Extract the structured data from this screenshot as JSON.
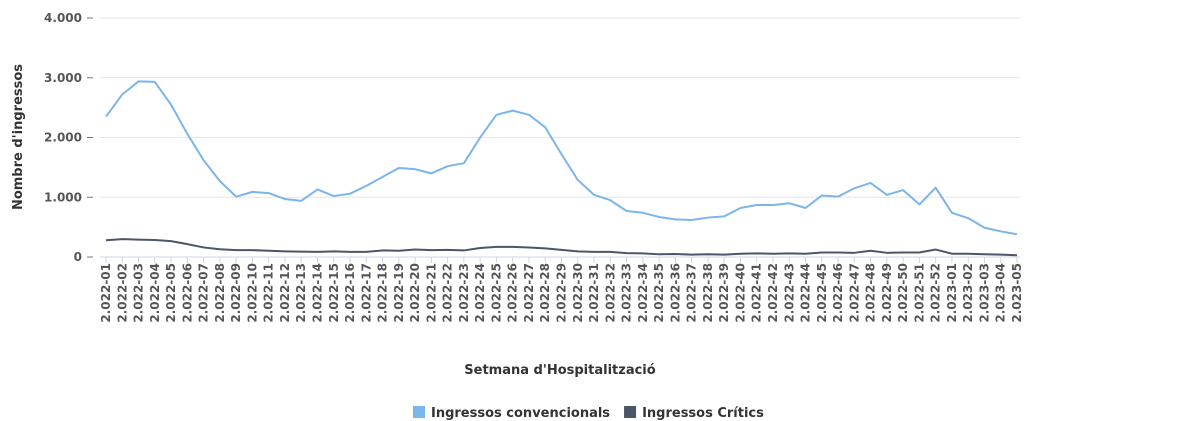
{
  "chart_data": {
    "type": "line",
    "xlabel": "Setmana d'Hospitalització",
    "ylabel": "Nombre d'ingressos",
    "categories": [
      "2.022-01",
      "2.022-02",
      "2.022-03",
      "2.022-04",
      "2.022-05",
      "2.022-06",
      "2.022-07",
      "2.022-08",
      "2.022-09",
      "2.022-10",
      "2.022-11",
      "2.022-12",
      "2.022-13",
      "2.022-14",
      "2.022-15",
      "2.022-16",
      "2.022-17",
      "2.022-18",
      "2.022-19",
      "2.022-20",
      "2.022-21",
      "2.022-22",
      "2.022-23",
      "2.022-24",
      "2.022-25",
      "2.022-26",
      "2.022-27",
      "2.022-28",
      "2.022-29",
      "2.022-30",
      "2.022-31",
      "2.022-32",
      "2.022-33",
      "2.022-34",
      "2.022-35",
      "2.022-36",
      "2.022-37",
      "2.022-38",
      "2.022-39",
      "2.022-40",
      "2.022-41",
      "2.022-42",
      "2.022-43",
      "2.022-44",
      "2.022-45",
      "2.022-46",
      "2.022-47",
      "2.022-48",
      "2.022-49",
      "2.022-50",
      "2.022-51",
      "2.022-52",
      "2.023-01",
      "2.023-02",
      "2.023-03",
      "2.023-04",
      "2.023-05"
    ],
    "series": [
      {
        "name": "Ingressos convencionals",
        "color": "#7cb5ec",
        "values": [
          2350,
          2720,
          2940,
          2930,
          2550,
          2060,
          1620,
          1270,
          1010,
          1090,
          1070,
          970,
          940,
          1130,
          1020,
          1060,
          1190,
          1340,
          1490,
          1470,
          1400,
          1520,
          1570,
          2000,
          2380,
          2450,
          2380,
          2170,
          1720,
          1290,
          1040,
          950,
          770,
          740,
          670,
          630,
          620,
          660,
          680,
          820,
          870,
          870,
          900,
          820,
          1030,
          1010,
          1150,
          1240,
          1040,
          1120,
          880,
          1160,
          740,
          650,
          490,
          430,
          380
        ]
      },
      {
        "name": "Ingressos Crítics",
        "color": "#4b5668",
        "values": [
          280,
          300,
          290,
          285,
          265,
          215,
          160,
          130,
          115,
          115,
          105,
          95,
          90,
          85,
          95,
          85,
          85,
          110,
          105,
          125,
          115,
          120,
          110,
          150,
          170,
          170,
          160,
          145,
          120,
          95,
          85,
          85,
          65,
          60,
          45,
          50,
          40,
          45,
          40,
          55,
          60,
          55,
          60,
          55,
          75,
          75,
          70,
          105,
          70,
          75,
          75,
          125,
          55,
          55,
          45,
          40,
          30
        ]
      }
    ],
    "ylim": [
      0,
      4000
    ],
    "yticks": [
      0,
      {
        "value": 1000,
        "label": "1.000"
      },
      {
        "value": 2000,
        "label": "2.000"
      },
      {
        "value": 3000,
        "label": "3.000"
      },
      {
        "value": 4000,
        "label": "4.000"
      }
    ],
    "grid": true,
    "legend": "bottom"
  }
}
